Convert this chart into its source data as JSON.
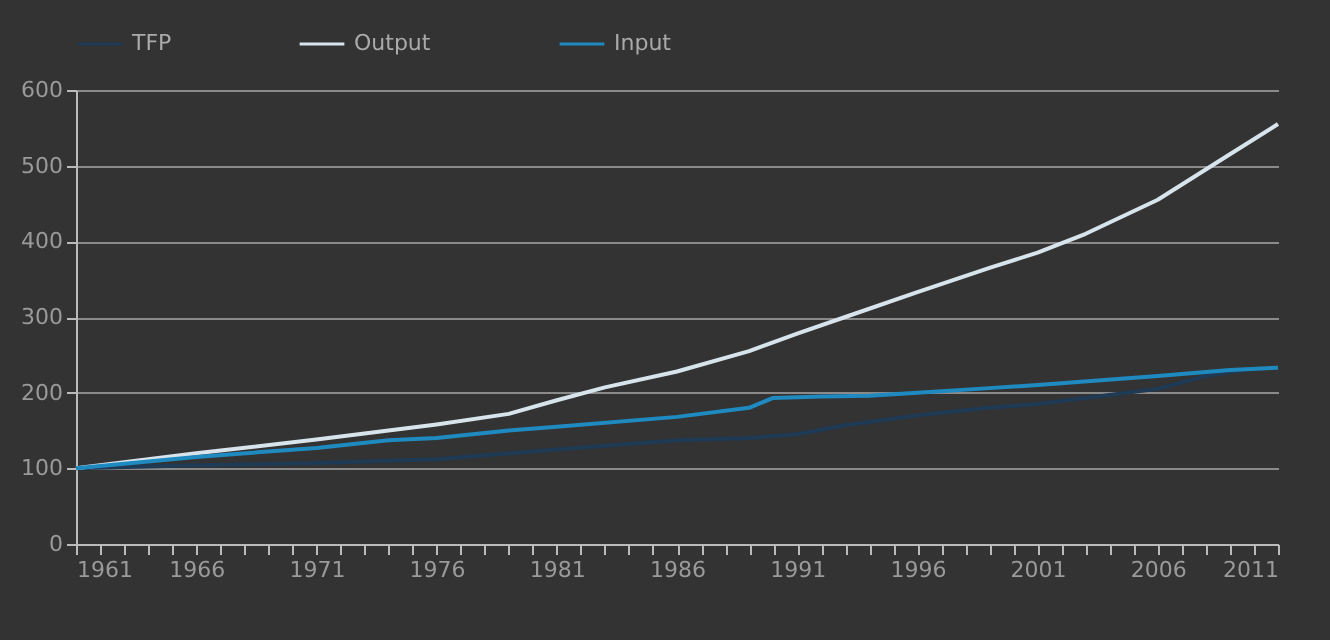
{
  "chart_data": {
    "type": "line",
    "xlim": [
      1961,
      2011
    ],
    "ylim": [
      0,
      600
    ],
    "yticks": [
      0,
      100,
      200,
      300,
      400,
      500,
      600
    ],
    "xticks": [
      1961,
      {
        "value": 1962,
        "label": null
      },
      {
        "value": 1963,
        "label": null
      },
      {
        "value": 1964,
        "label": null
      },
      {
        "value": 1965,
        "label": null
      },
      1966,
      {
        "value": 1967,
        "label": null
      },
      {
        "value": 1968,
        "label": null
      },
      {
        "value": 1969,
        "label": null
      },
      {
        "value": 1970,
        "label": null
      },
      1971,
      {
        "value": 1972,
        "label": null
      },
      {
        "value": 1973,
        "label": null
      },
      {
        "value": 1974,
        "label": null
      },
      {
        "value": 1975,
        "label": null
      },
      1976,
      {
        "value": 1977,
        "label": null
      },
      {
        "value": 1978,
        "label": null
      },
      {
        "value": 1979,
        "label": null
      },
      {
        "value": 1980,
        "label": null
      },
      1981,
      {
        "value": 1982,
        "label": null
      },
      {
        "value": 1983,
        "label": null
      },
      {
        "value": 1984,
        "label": null
      },
      {
        "value": 1985,
        "label": null
      },
      1986,
      {
        "value": 1987,
        "label": null
      },
      {
        "value": 1988,
        "label": null
      },
      {
        "value": 1989,
        "label": null
      },
      {
        "value": 1990,
        "label": null
      },
      1991,
      {
        "value": 1992,
        "label": null
      },
      {
        "value": 1993,
        "label": null
      },
      {
        "value": 1994,
        "label": null
      },
      {
        "value": 1995,
        "label": null
      },
      1996,
      {
        "value": 1997,
        "label": null
      },
      {
        "value": 1998,
        "label": null
      },
      {
        "value": 1999,
        "label": null
      },
      {
        "value": 2000,
        "label": null
      },
      2001,
      {
        "value": 2002,
        "label": null
      },
      {
        "value": 2003,
        "label": null
      },
      {
        "value": 2004,
        "label": null
      },
      {
        "value": 2005,
        "label": null
      },
      2006,
      {
        "value": 2007,
        "label": null
      },
      {
        "value": 2008,
        "label": null
      },
      {
        "value": 2009,
        "label": null
      },
      {
        "value": 2010,
        "label": null
      },
      2011
    ],
    "grid": "y",
    "legend": "top",
    "marker": "none",
    "line_style": "solid",
    "series": [
      {
        "name": "TFP",
        "color": "#1f3a55",
        "x": [
          1961,
          1966,
          1971,
          1976,
          1981,
          1986,
          1989,
          1991,
          1993,
          1996,
          1999,
          2001,
          2006,
          2008,
          2010
        ],
        "values": [
          100,
          104,
          107,
          112,
          125,
          137,
          140,
          145,
          157,
          170,
          180,
          185,
          205,
          222,
          232
        ]
      },
      {
        "name": "Output",
        "color": "#d8e4ec",
        "x": [
          1961,
          1966,
          1971,
          1976,
          1979,
          1981,
          1983,
          1986,
          1989,
          1991,
          1993,
          1996,
          1999,
          2001,
          2003,
          2006,
          2009,
          2011
        ],
        "values": [
          100,
          120,
          138,
          158,
          172,
          190,
          207,
          228,
          255,
          278,
          300,
          333,
          365,
          385,
          410,
          455,
          515,
          555
        ]
      },
      {
        "name": "Input",
        "color": "#1f8ac0",
        "x": [
          1961,
          1966,
          1971,
          1974,
          1976,
          1979,
          1981,
          1986,
          1989,
          1990,
          1992,
          1994,
          1996,
          1999,
          2001,
          2006,
          2009,
          2011
        ],
        "values": [
          100,
          115,
          127,
          137,
          140,
          150,
          155,
          168,
          180,
          193,
          195,
          196,
          200,
          206,
          210,
          222,
          230,
          233
        ]
      }
    ]
  }
}
